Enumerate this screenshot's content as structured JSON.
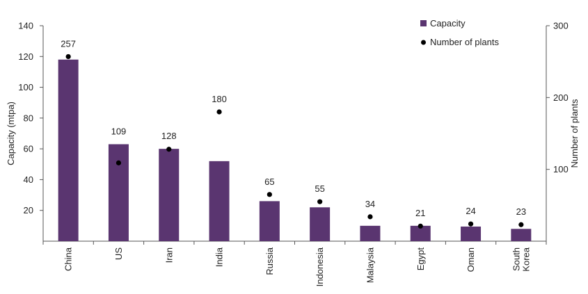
{
  "chart_data": {
    "type": "bar",
    "categories": [
      "China",
      "US",
      "Iran",
      "India",
      "Russia",
      "Indonesia",
      "Malaysia",
      "Egypt",
      "Oman",
      "South Korea"
    ],
    "series": [
      {
        "name": "Capacity",
        "type": "bar",
        "axis": "left",
        "values": [
          118,
          63,
          60,
          52,
          26,
          22,
          10,
          10,
          9.5,
          8
        ]
      },
      {
        "name": "Number of plants",
        "type": "scatter",
        "axis": "right",
        "values": [
          257,
          109,
          128,
          180,
          65,
          55,
          34,
          21,
          24,
          23
        ]
      }
    ],
    "data_labels": [
      "257",
      "109",
      "128",
      "180",
      "65",
      "55",
      "34",
      "21",
      "24",
      "23"
    ],
    "ylabel": "Capacity (mtpa)",
    "y2label": "Number of plants",
    "ylim": [
      0,
      140
    ],
    "y2lim": [
      0,
      300
    ],
    "yticks": [
      20,
      40,
      60,
      80,
      100,
      120,
      140
    ],
    "y2ticks": [
      100,
      200,
      300
    ],
    "grid": false,
    "legend_position": "top-right",
    "colors": {
      "bar": "#5a3570",
      "dot": "#000000"
    }
  }
}
